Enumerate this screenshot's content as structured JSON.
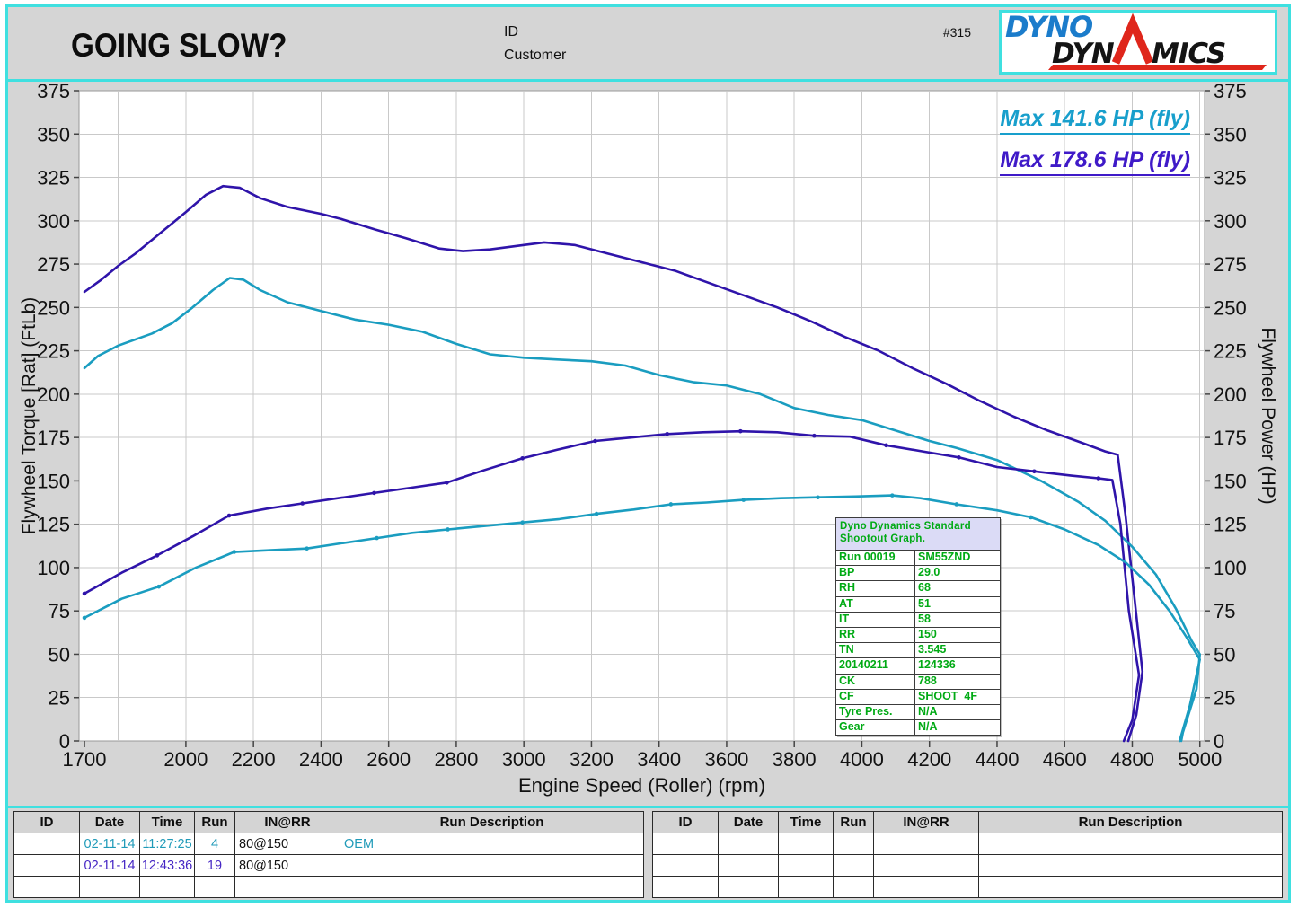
{
  "header": {
    "title": "GOING SLOW?",
    "id_label": "ID",
    "customer_label": "Customer",
    "run_number": "#315",
    "logo_top": "DYNO",
    "logo_bottom_left": "DYN",
    "logo_bottom_right": "MICS",
    "logo_full_name": "DYNO DYNAMICS"
  },
  "annotations": {
    "max_power_oem": "Max 141.6 HP (fly)",
    "max_power_mod": "Max 178.6 HP (fly)"
  },
  "colors": {
    "frame_cyan": "#3fe0e0",
    "panel_gray": "#d5d5d5",
    "grid": "#c9c9c9",
    "plot_border": "#999999",
    "curve_blue": "#2f14aa",
    "curve_cyan": "#1a9dc0",
    "annotation_blue": "#3f1ac8",
    "annotation_cyan": "#189fcc",
    "info_green": "#00aa14",
    "info_header_bg": "#dbdbf6",
    "logo_blue": "#1b7ccb",
    "logo_red": "#df261b",
    "run_row1_cyan": "#1f9ab8",
    "run_row2_blue": "#4526c4"
  },
  "chart_data": {
    "type": "line",
    "title": "",
    "xlabel": "Engine Speed (Roller) (rpm)",
    "ylabel_left": "Flywheel Torque [Rat] (FtLb)",
    "ylabel_right": "Flywheel Power (HP)",
    "xlim": [
      1684,
      5014
    ],
    "ylim": [
      0,
      375
    ],
    "grid": true,
    "x_ticks": [
      1700,
      2000,
      2200,
      2400,
      2600,
      2800,
      3000,
      3200,
      3400,
      3600,
      3800,
      4000,
      4200,
      4400,
      4600,
      4800,
      5000
    ],
    "x_gridlines": [
      1800,
      2000,
      2200,
      2400,
      2600,
      2800,
      3000,
      3200,
      3400,
      3600,
      3800,
      4000,
      4200,
      4400,
      4600,
      4800,
      5000
    ],
    "y_ticks": [
      0,
      25,
      50,
      75,
      100,
      125,
      150,
      175,
      200,
      225,
      250,
      275,
      300,
      325,
      350,
      375
    ],
    "series": [
      {
        "name": "torque-modified",
        "unit": "FtLb",
        "color": "#2f14aa",
        "markers": false,
        "points": [
          [
            1700,
            259
          ],
          [
            1750,
            266
          ],
          [
            1800,
            274
          ],
          [
            1850,
            281
          ],
          [
            1900,
            289
          ],
          [
            1950,
            297
          ],
          [
            2000,
            305
          ],
          [
            2060,
            315
          ],
          [
            2110,
            320
          ],
          [
            2160,
            319
          ],
          [
            2220,
            313
          ],
          [
            2300,
            308
          ],
          [
            2400,
            304
          ],
          [
            2460,
            301
          ],
          [
            2560,
            295
          ],
          [
            2650,
            290
          ],
          [
            2750,
            284
          ],
          [
            2820,
            282.5
          ],
          [
            2900,
            283.5
          ],
          [
            3000,
            286
          ],
          [
            3060,
            287.5
          ],
          [
            3150,
            286
          ],
          [
            3250,
            281
          ],
          [
            3350,
            276
          ],
          [
            3450,
            271
          ],
          [
            3550,
            264
          ],
          [
            3650,
            257
          ],
          [
            3750,
            250
          ],
          [
            3850,
            242
          ],
          [
            3950,
            233
          ],
          [
            4050,
            225
          ],
          [
            4150,
            215
          ],
          [
            4250,
            206
          ],
          [
            4350,
            196
          ],
          [
            4450,
            187
          ],
          [
            4550,
            179
          ],
          [
            4650,
            172
          ],
          [
            4720,
            167
          ],
          [
            4757,
            165
          ],
          [
            4780,
            130
          ],
          [
            4805,
            85
          ],
          [
            4830,
            40
          ],
          [
            4812,
            15
          ],
          [
            4788,
            0
          ]
        ]
      },
      {
        "name": "torque-oem",
        "unit": "FtLb",
        "color": "#1a9dc0",
        "markers": false,
        "points": [
          [
            1700,
            215
          ],
          [
            1740,
            222
          ],
          [
            1800,
            228
          ],
          [
            1900,
            235
          ],
          [
            1960,
            241
          ],
          [
            2020,
            250
          ],
          [
            2080,
            260
          ],
          [
            2130,
            267
          ],
          [
            2170,
            266
          ],
          [
            2220,
            260
          ],
          [
            2300,
            253
          ],
          [
            2400,
            248
          ],
          [
            2500,
            243
          ],
          [
            2600,
            240
          ],
          [
            2700,
            236
          ],
          [
            2800,
            229
          ],
          [
            2900,
            223
          ],
          [
            3000,
            221
          ],
          [
            3100,
            220
          ],
          [
            3200,
            219
          ],
          [
            3300,
            216.5
          ],
          [
            3400,
            211
          ],
          [
            3500,
            207
          ],
          [
            3600,
            205
          ],
          [
            3700,
            200
          ],
          [
            3800,
            192
          ],
          [
            3900,
            188
          ],
          [
            4000,
            185
          ],
          [
            4100,
            179
          ],
          [
            4200,
            173
          ],
          [
            4280,
            169
          ],
          [
            4400,
            162
          ],
          [
            4530,
            150
          ],
          [
            4640,
            138
          ],
          [
            4720,
            127
          ],
          [
            4800,
            112
          ],
          [
            4870,
            96
          ],
          [
            4930,
            76
          ],
          [
            4975,
            58
          ],
          [
            5000,
            50
          ],
          [
            4990,
            30
          ],
          [
            4950,
            5
          ],
          [
            4945,
            0
          ]
        ]
      },
      {
        "name": "power-modified",
        "unit": "HP",
        "color": "#2f14aa",
        "markers": true,
        "marker_max_rpm": 4745,
        "max_value": 178.6,
        "points": [
          [
            1700,
            85
          ],
          [
            1810,
            97
          ],
          [
            1915,
            107
          ],
          [
            2020,
            118
          ],
          [
            2128,
            130
          ],
          [
            2240,
            134
          ],
          [
            2345,
            137
          ],
          [
            2450,
            140
          ],
          [
            2557,
            143
          ],
          [
            2665,
            146
          ],
          [
            2772,
            149
          ],
          [
            2880,
            156
          ],
          [
            2996,
            163
          ],
          [
            3100,
            168
          ],
          [
            3211,
            173
          ],
          [
            3320,
            175
          ],
          [
            3424,
            177
          ],
          [
            3530,
            178
          ],
          [
            3641,
            178.6
          ],
          [
            3750,
            178
          ],
          [
            3859,
            176
          ],
          [
            3965,
            175.5
          ],
          [
            4072,
            170.5
          ],
          [
            4180,
            167
          ],
          [
            4287,
            163.5
          ],
          [
            4400,
            158
          ],
          [
            4510,
            155.5
          ],
          [
            4620,
            153
          ],
          [
            4700,
            151.5
          ],
          [
            4741,
            150.5
          ],
          [
            4765,
            125
          ],
          [
            4790,
            75
          ],
          [
            4820,
            38
          ],
          [
            4800,
            12
          ],
          [
            4775,
            0
          ]
        ]
      },
      {
        "name": "power-oem",
        "unit": "HP",
        "color": "#1a9dc0",
        "markers": true,
        "marker_max_rpm": 4650,
        "max_value": 141.6,
        "points": [
          [
            1700,
            71
          ],
          [
            1810,
            82
          ],
          [
            1920,
            89
          ],
          [
            2030,
            100
          ],
          [
            2143,
            109
          ],
          [
            2250,
            110
          ],
          [
            2358,
            111
          ],
          [
            2460,
            114
          ],
          [
            2565,
            117
          ],
          [
            2670,
            120
          ],
          [
            2775,
            122
          ],
          [
            2885,
            124
          ],
          [
            2996,
            126
          ],
          [
            3105,
            128
          ],
          [
            3215,
            131
          ],
          [
            3325,
            133.5
          ],
          [
            3435,
            136.5
          ],
          [
            3540,
            137.5
          ],
          [
            3650,
            139
          ],
          [
            3760,
            140
          ],
          [
            3870,
            140.5
          ],
          [
            3980,
            141
          ],
          [
            4090,
            141.6
          ],
          [
            4173,
            140
          ],
          [
            4280,
            136.5
          ],
          [
            4400,
            133
          ],
          [
            4500,
            129
          ],
          [
            4600,
            122
          ],
          [
            4700,
            113
          ],
          [
            4780,
            103
          ],
          [
            4850,
            90
          ],
          [
            4910,
            75
          ],
          [
            4960,
            60
          ],
          [
            5000,
            47
          ],
          [
            4970,
            20
          ],
          [
            4940,
            0
          ]
        ]
      }
    ]
  },
  "info_box": {
    "header": "Dyno Dynamics Standard Shootout Graph.",
    "rows": [
      [
        "Run 00019",
        "SM55ZND"
      ],
      [
        "BP",
        "29.0"
      ],
      [
        "RH",
        "68"
      ],
      [
        "AT",
        "51"
      ],
      [
        "IT",
        "58"
      ],
      [
        "RR",
        "150"
      ],
      [
        "TN",
        "3.545"
      ],
      [
        "20140211",
        "124336"
      ],
      [
        "CK",
        "788"
      ],
      [
        "CF",
        "SHOOT_4F"
      ],
      [
        "Tyre Pres.",
        "N/A"
      ],
      [
        "Gear",
        "N/A"
      ]
    ]
  },
  "runs_table": {
    "headers": [
      "ID",
      "Date",
      "Time",
      "Run",
      "IN@RR",
      "Run Description"
    ],
    "left_rows": [
      {
        "id": "",
        "date": "02-11-14",
        "time": "11:27:25",
        "run": "4",
        "in_rr": "80@150",
        "desc": "OEM",
        "color": "#1f9ab8"
      },
      {
        "id": "",
        "date": "02-11-14",
        "time": "12:43:36",
        "run": "19",
        "in_rr": "80@150",
        "desc": "",
        "color": "#4526c4"
      },
      {
        "id": "",
        "date": "",
        "time": "",
        "run": "",
        "in_rr": "",
        "desc": "",
        "color": ""
      }
    ],
    "right_rows": [
      {
        "id": "",
        "date": "",
        "time": "",
        "run": "",
        "in_rr": "",
        "desc": "",
        "color": ""
      },
      {
        "id": "",
        "date": "",
        "time": "",
        "run": "",
        "in_rr": "",
        "desc": "",
        "color": ""
      },
      {
        "id": "",
        "date": "",
        "time": "",
        "run": "",
        "in_rr": "",
        "desc": "",
        "color": ""
      }
    ]
  }
}
